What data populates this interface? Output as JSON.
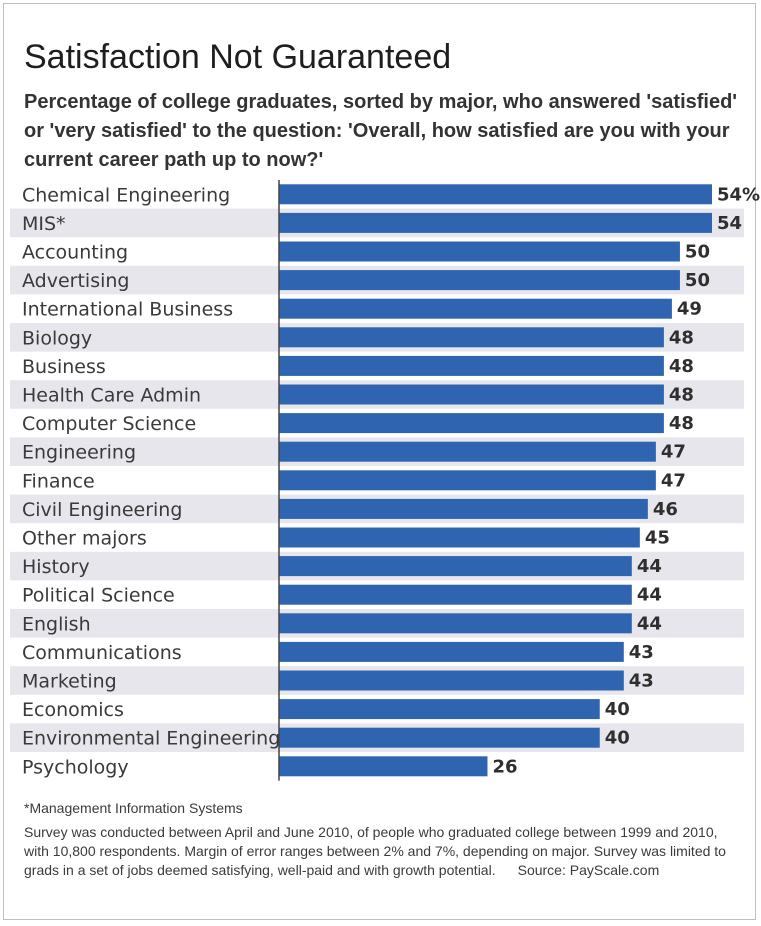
{
  "title": "Satisfaction Not Guaranteed",
  "subtitle": "Percentage of college graduates, sorted by major, who answered 'satisfied' or 'very satisfied' to the question: 'Overall, how satisfied are you with your current career path up to now?'",
  "footnote": "*Management Information Systems",
  "note": "Survey was conducted between April and June 2010, of people who graduated college between 1999 and 2010, with 10,800 respondents. Margin of error ranges between 2% and 7%, depending on major. Survey was limited to grads in a set of jobs deemed satisfying, well-paid and with growth potential.",
  "source": "Source: PayScale.com",
  "colors": {
    "bar": "#2e64b0",
    "row_shade": "#e6e6ec",
    "axis": "#444444"
  },
  "chart_data": {
    "type": "bar",
    "orientation": "horizontal",
    "categories": [
      "Chemical Engineering",
      "MIS*",
      "Accounting",
      "Advertising",
      "International Business",
      "Biology",
      "Business",
      "Health Care Admin",
      "Computer Science",
      "Engineering",
      "Finance",
      "Civil Engineering",
      "Other majors",
      "History",
      "Political Science",
      "English",
      "Communications",
      "Marketing",
      "Economics",
      "Environmental Engineering",
      "Psychology"
    ],
    "values": [
      54,
      54,
      50,
      50,
      49,
      48,
      48,
      48,
      48,
      47,
      47,
      46,
      45,
      44,
      44,
      44,
      43,
      43,
      40,
      40,
      26
    ],
    "value_labels": [
      "54%",
      "54",
      "50",
      "50",
      "49",
      "48",
      "48",
      "48",
      "48",
      "47",
      "47",
      "46",
      "45",
      "44",
      "44",
      "44",
      "43",
      "43",
      "40",
      "40",
      "26"
    ],
    "unit": "%",
    "xlim": [
      0,
      54
    ],
    "grid": false,
    "legend": "none",
    "row_shading": "alternating"
  }
}
